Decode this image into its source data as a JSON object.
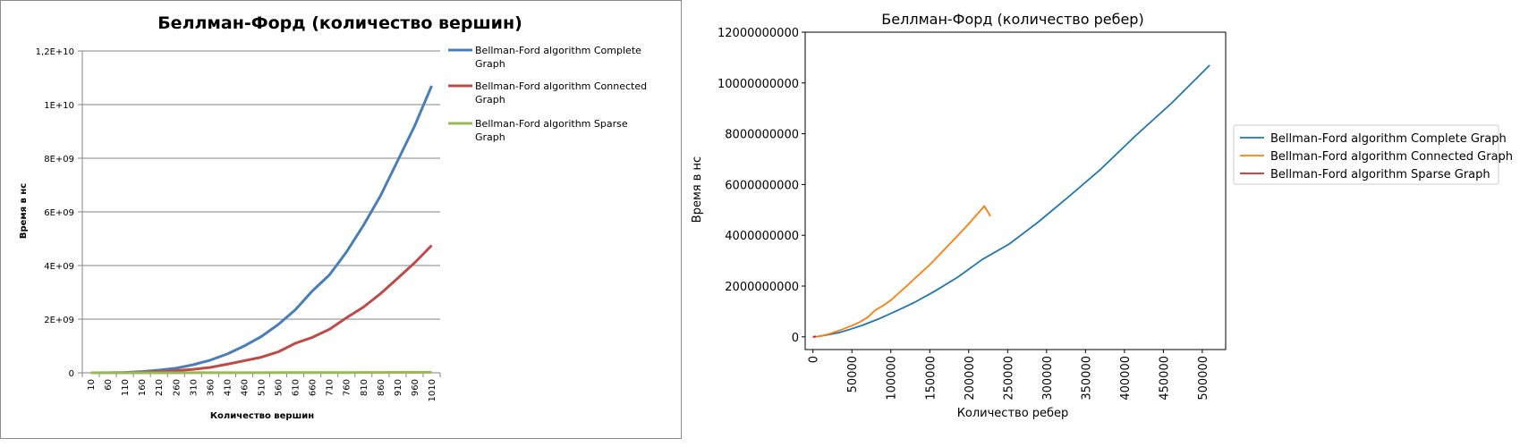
{
  "chart_data": [
    {
      "type": "line",
      "title": "Беллман-Форд (количество вершин)",
      "xlabel": "Количество  вершин",
      "ylabel": "Время  в нс",
      "categories": [
        "10",
        "60",
        "110",
        "160",
        "210",
        "260",
        "310",
        "360",
        "410",
        "460",
        "510",
        "560",
        "610",
        "660",
        "710",
        "760",
        "810",
        "860",
        "910",
        "960",
        "1010"
      ],
      "ylim": [
        0,
        12000000000
      ],
      "yticks": [
        0,
        2000000000,
        4000000000,
        6000000000,
        8000000000,
        10000000000,
        12000000000
      ],
      "ytick_labels": [
        "0",
        "2E+09",
        "4E+09",
        "6E+09",
        "8E+09",
        "1E+10",
        "1,2E+10"
      ],
      "grid": true,
      "legend_position": "right",
      "series": [
        {
          "name": "Bellman-Ford algorithm Complete Graph",
          "color": "#4a7ebb",
          "values": [
            0,
            2000000,
            12000000,
            45000000,
            100000000,
            170000000,
            300000000,
            470000000,
            700000000,
            1000000000,
            1350000000,
            1800000000,
            2350000000,
            3050000000,
            3650000000,
            4500000000,
            5500000000,
            6600000000,
            7900000000,
            9200000000,
            10700000000
          ]
        },
        {
          "name": "Bellman-Ford algorithm Connected Graph",
          "color": "#be4b48",
          "values": [
            0,
            1000000,
            5000000,
            20000000,
            45000000,
            80000000,
            130000000,
            200000000,
            320000000,
            450000000,
            580000000,
            780000000,
            1100000000,
            1320000000,
            1620000000,
            2050000000,
            2450000000,
            2950000000,
            3520000000,
            4100000000,
            4750000000
          ]
        },
        {
          "name": "Bellman-Ford algorithm Sparse Graph",
          "color": "#98b954",
          "values": [
            0,
            0,
            0,
            0,
            0,
            1000000,
            2000000,
            2000000,
            3000000,
            4000000,
            5000000,
            6000000,
            7000000,
            8000000,
            9000000,
            10000000,
            12000000,
            14000000,
            16000000,
            18000000,
            20000000
          ]
        }
      ]
    },
    {
      "type": "line",
      "title": "Беллман-Форд (количество ребер)",
      "xlabel": "Количество ребер",
      "ylabel": "Время в нс",
      "xlim": [
        -10000,
        530000
      ],
      "ylim": [
        -500000000,
        12000000000
      ],
      "xticks": [
        0,
        50000,
        100000,
        150000,
        200000,
        250000,
        300000,
        350000,
        400000,
        450000,
        500000
      ],
      "yticks": [
        0,
        2000000000,
        4000000000,
        6000000000,
        8000000000,
        10000000000,
        12000000000
      ],
      "grid": false,
      "legend_position": "right",
      "series": [
        {
          "name": "Bellman-Ford algorithm Complete Graph",
          "color": "#1f77b4",
          "x": [
            45,
            1770,
            5995,
            12720,
            21945,
            33670,
            47895,
            64620,
            83845,
            105570,
            129795,
            156520,
            185745,
            217470,
            251695,
            288420,
            327645,
            369370,
            413595,
            460320,
            509545
          ],
          "y": [
            0,
            2000000,
            12000000,
            45000000,
            100000000,
            170000000,
            300000000,
            470000000,
            700000000,
            1000000000,
            1350000000,
            1800000000,
            2350000000,
            3050000000,
            3650000000,
            4500000000,
            5500000000,
            6600000000,
            7900000000,
            9200000000,
            10700000000
          ]
        },
        {
          "name": "Bellman-Ford algorithm Connected Graph",
          "color": "#ff7f0e",
          "x": [
            0,
            5000,
            12000,
            20000,
            30000,
            40000,
            50000,
            60000,
            70000,
            80000,
            90000,
            100000,
            110000,
            120000,
            130000,
            140000,
            150000,
            160000,
            170000,
            180000,
            190000,
            200000,
            210000,
            220000,
            228000
          ],
          "y": [
            0,
            10000000,
            50000000,
            110000000,
            210000000,
            320000000,
            440000000,
            580000000,
            760000000,
            1050000000,
            1230000000,
            1440000000,
            1720000000,
            1990000000,
            2280000000,
            2560000000,
            2840000000,
            3160000000,
            3480000000,
            3800000000,
            4120000000,
            4450000000,
            4800000000,
            5150000000,
            4750000000
          ]
        },
        {
          "name": "Bellman-Ford algorithm Sparse Graph",
          "color": "#d62728",
          "x": [
            0,
            1000,
            2000,
            3000,
            4000
          ],
          "y": [
            0,
            2000000,
            5000000,
            10000000,
            20000000
          ]
        }
      ]
    }
  ]
}
